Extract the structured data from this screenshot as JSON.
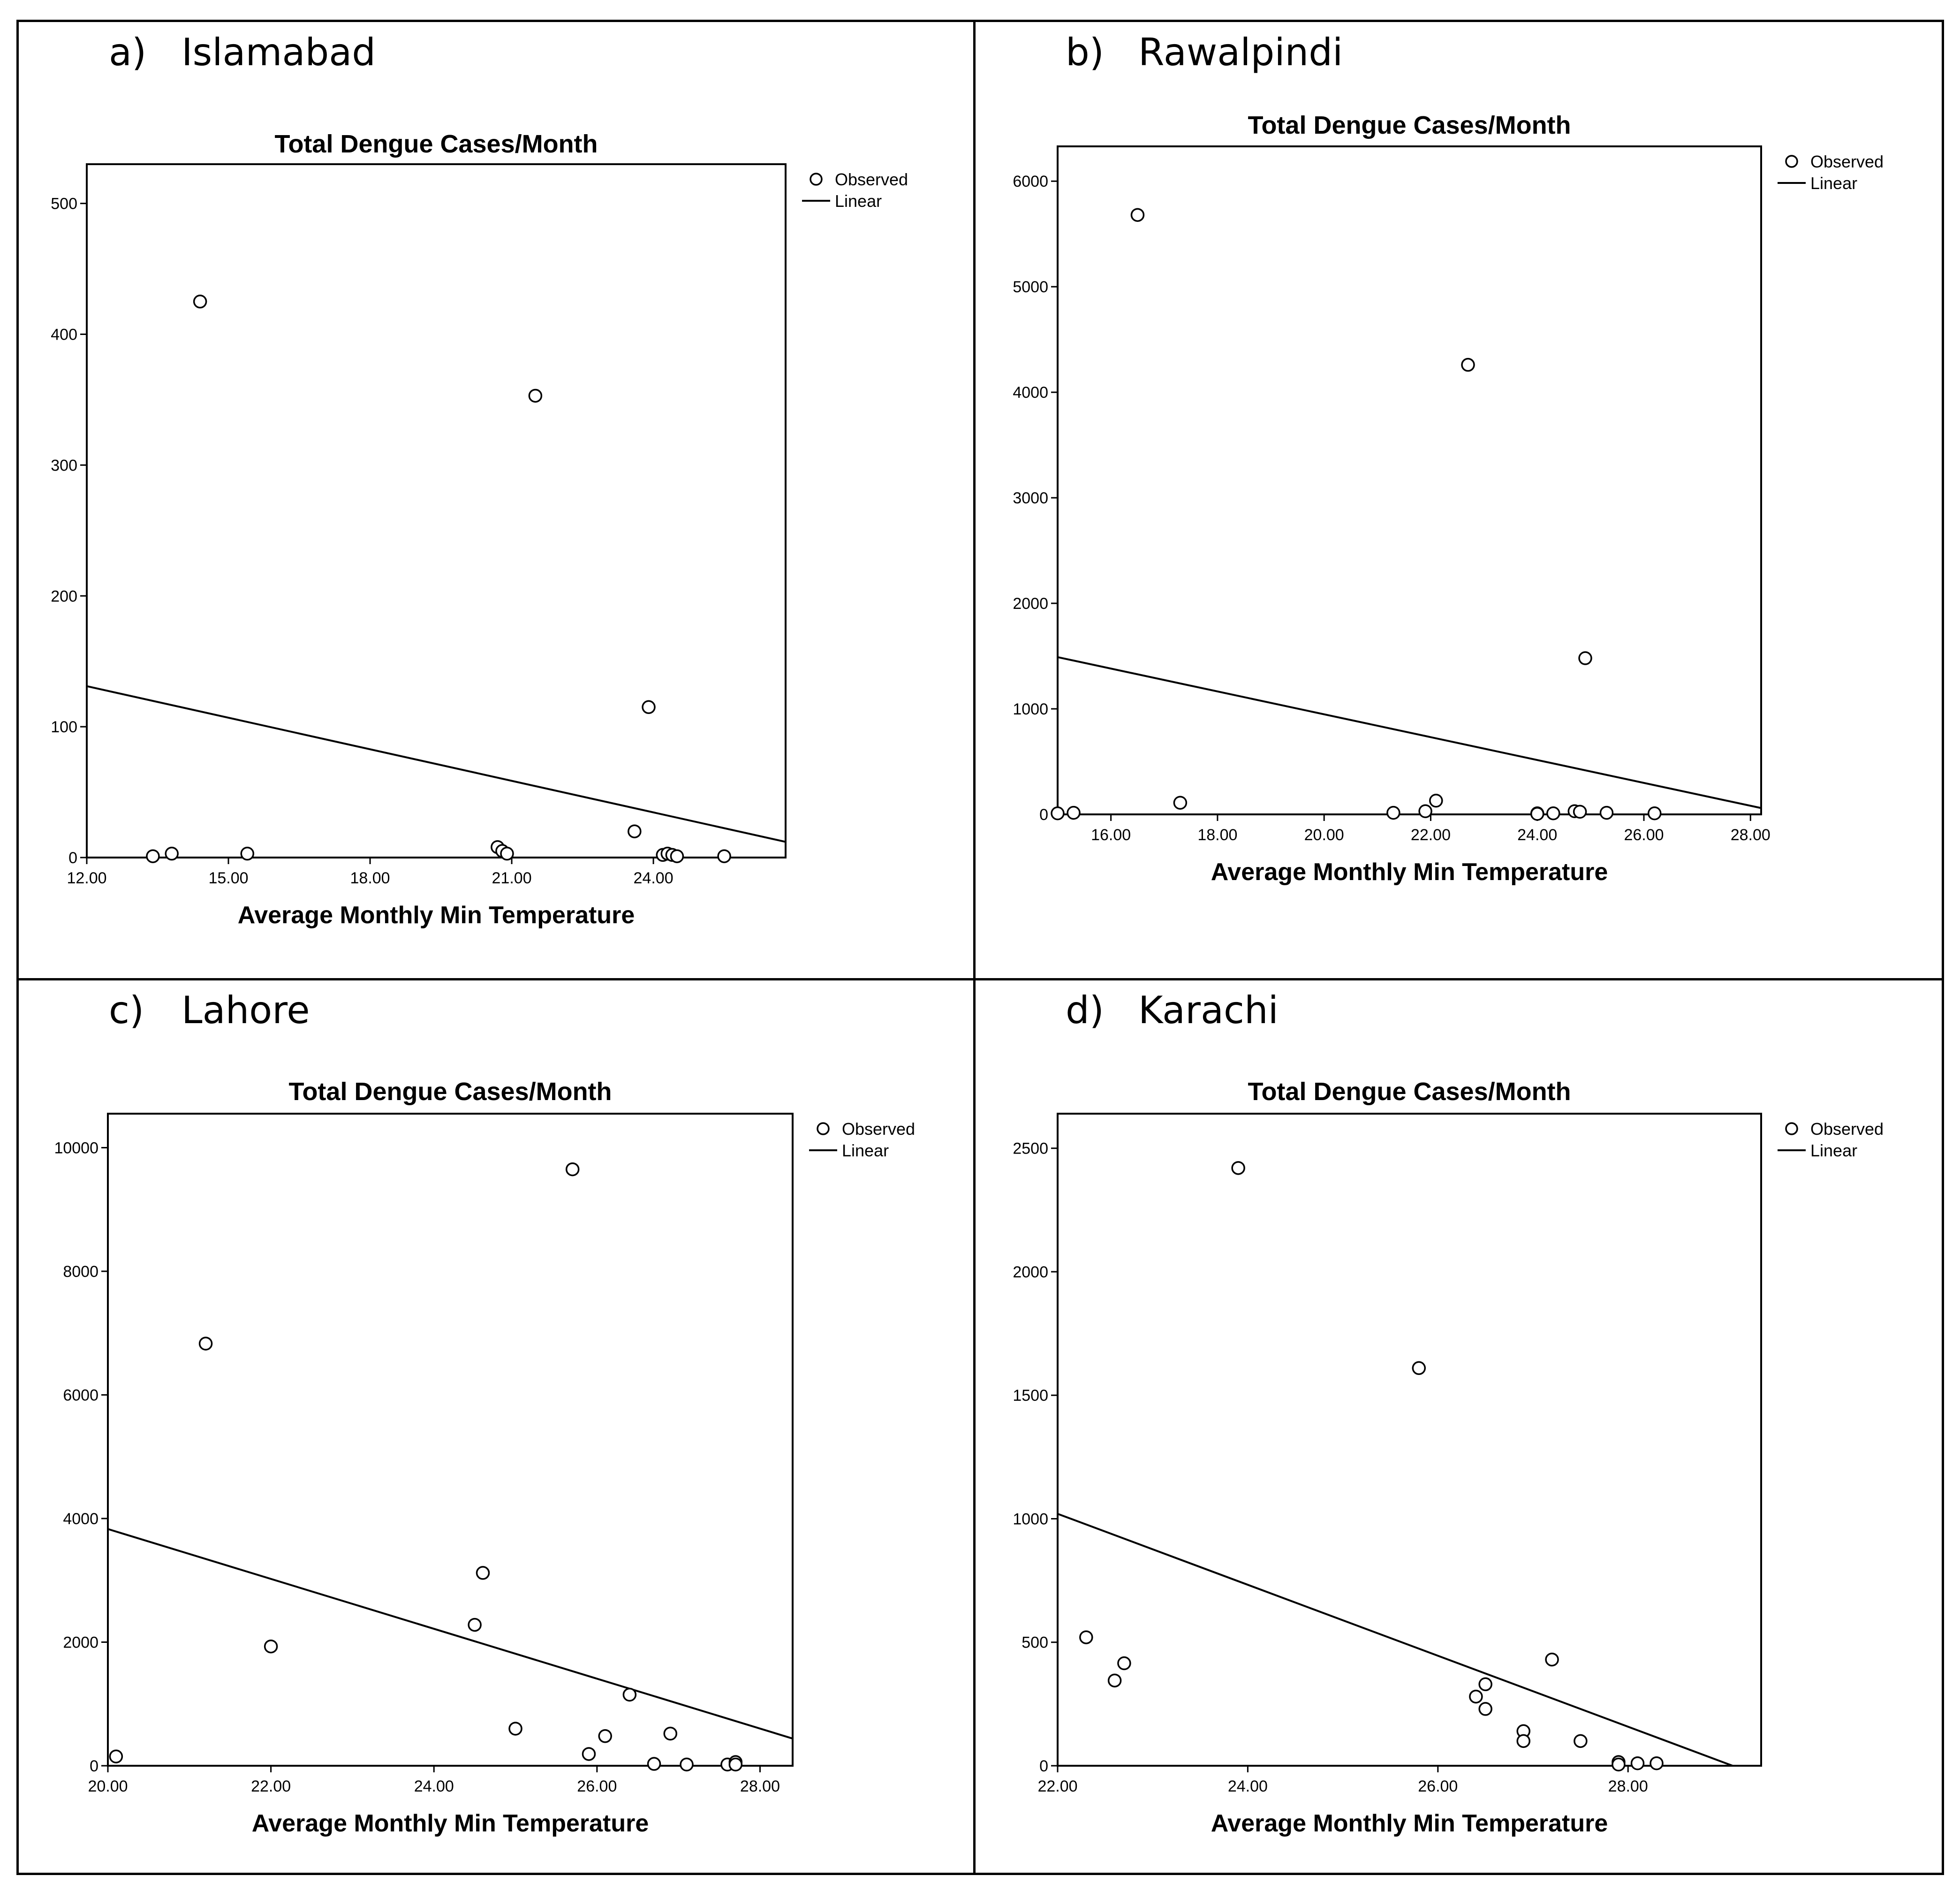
{
  "figure": {
    "panels": [
      {
        "letter": "a)",
        "city": "Islamabad"
      },
      {
        "letter": "b)",
        "city": "Rawalpindi"
      },
      {
        "letter": "c)",
        "city": "Lahore"
      },
      {
        "letter": "d)",
        "city": "Karachi"
      }
    ]
  },
  "chart_data": [
    {
      "type": "scatter",
      "panel": "a) Islamabad",
      "title": "Total Dengue Cases/Month",
      "xlabel": "Average Monthly Min Temperature",
      "ylabel": "",
      "xlim": [
        12,
        26.8
      ],
      "ylim": [
        0,
        530
      ],
      "xticks": [
        12,
        15,
        18,
        21,
        24
      ],
      "xtick_labels": [
        "12.00",
        "15.00",
        "18.00",
        "21.00",
        "24.00"
      ],
      "yticks": [
        0,
        100,
        200,
        300,
        400,
        500
      ],
      "ytick_labels": [
        "0",
        "100",
        "200",
        "300",
        "400",
        "500"
      ],
      "legend": [
        "Observed",
        "Linear"
      ],
      "legend_position": "outside-top-right",
      "points": [
        [
          13.4,
          1
        ],
        [
          13.8,
          3
        ],
        [
          14.4,
          425
        ],
        [
          15.4,
          3
        ],
        [
          20.7,
          8
        ],
        [
          20.8,
          5
        ],
        [
          20.9,
          3
        ],
        [
          21.5,
          353
        ],
        [
          23.6,
          20
        ],
        [
          23.9,
          115
        ],
        [
          24.2,
          2
        ],
        [
          24.3,
          3
        ],
        [
          24.4,
          2
        ],
        [
          24.5,
          1
        ],
        [
          25.5,
          1
        ]
      ],
      "linear_fit": {
        "x": [
          12,
          26.8
        ],
        "y": [
          131,
          12
        ]
      }
    },
    {
      "type": "scatter",
      "panel": "b) Rawalpindi",
      "title": "Total Dengue Cases/Month",
      "xlabel": "Average Monthly Min Temperature",
      "ylabel": "",
      "xlim": [
        15,
        28.2
      ],
      "ylim": [
        0,
        6330
      ],
      "xticks": [
        16,
        18,
        20,
        22,
        24,
        26,
        28
      ],
      "xtick_labels": [
        "16.00",
        "18.00",
        "20.00",
        "22.00",
        "24.00",
        "26.00",
        "28.00"
      ],
      "yticks": [
        0,
        1000,
        2000,
        3000,
        4000,
        5000,
        6000
      ],
      "ytick_labels": [
        "0",
        "1000",
        "2000",
        "3000",
        "4000",
        "5000",
        "6000"
      ],
      "legend": [
        "Observed",
        "Linear"
      ],
      "legend_position": "outside-top-right",
      "points": [
        [
          15.0,
          10
        ],
        [
          15.3,
          15
        ],
        [
          16.5,
          5680
        ],
        [
          17.3,
          110
        ],
        [
          21.3,
          15
        ],
        [
          21.9,
          30
        ],
        [
          22.1,
          130
        ],
        [
          22.7,
          4260
        ],
        [
          24.0,
          10
        ],
        [
          24.0,
          5
        ],
        [
          24.3,
          10
        ],
        [
          24.7,
          30
        ],
        [
          24.8,
          25
        ],
        [
          24.9,
          1480
        ],
        [
          25.3,
          15
        ],
        [
          26.2,
          10
        ]
      ],
      "linear_fit": {
        "x": [
          15,
          28.2
        ],
        "y": [
          1490,
          60
        ]
      }
    },
    {
      "type": "scatter",
      "panel": "c) Lahore",
      "title": "Total Dengue Cases/Month",
      "xlabel": "Average Monthly Min Temperature",
      "ylabel": "",
      "xlim": [
        20,
        28.4
      ],
      "ylim": [
        0,
        10550
      ],
      "xticks": [
        20,
        22,
        24,
        26,
        28
      ],
      "xtick_labels": [
        "20.00",
        "22.00",
        "24.00",
        "26.00",
        "28.00"
      ],
      "yticks": [
        0,
        2000,
        4000,
        6000,
        8000,
        10000
      ],
      "ytick_labels": [
        "0",
        "2000",
        "4000",
        "6000",
        "8000",
        "10000"
      ],
      "legend": [
        "Observed",
        "Linear"
      ],
      "legend_position": "outside-top-right",
      "points": [
        [
          20.1,
          150
        ],
        [
          21.2,
          6830
        ],
        [
          22.0,
          1930
        ],
        [
          24.5,
          2280
        ],
        [
          24.6,
          3120
        ],
        [
          25.0,
          600
        ],
        [
          25.7,
          9650
        ],
        [
          25.9,
          190
        ],
        [
          26.1,
          480
        ],
        [
          26.4,
          1150
        ],
        [
          26.7,
          30
        ],
        [
          26.9,
          520
        ],
        [
          27.1,
          20
        ],
        [
          27.6,
          20
        ],
        [
          27.7,
          60
        ],
        [
          27.7,
          20
        ]
      ],
      "linear_fit": {
        "x": [
          20,
          28.4
        ],
        "y": [
          3830,
          440
        ]
      }
    },
    {
      "type": "scatter",
      "panel": "d) Karachi",
      "title": "Total Dengue Cases/Month",
      "xlabel": "Average Monthly Min Temperature",
      "ylabel": "",
      "xlim": [
        22,
        29.4
      ],
      "ylim": [
        0,
        2640
      ],
      "xticks": [
        22,
        24,
        26,
        28
      ],
      "xtick_labels": [
        "22.00",
        "24.00",
        "26.00",
        "28.00"
      ],
      "yticks": [
        0,
        500,
        1000,
        1500,
        2000,
        2500
      ],
      "ytick_labels": [
        "0",
        "500",
        "1000",
        "1500",
        "2000",
        "2500"
      ],
      "legend": [
        "Observed",
        "Linear"
      ],
      "legend_position": "outside-top-right",
      "points": [
        [
          22.3,
          520
        ],
        [
          22.6,
          345
        ],
        [
          22.7,
          415
        ],
        [
          23.9,
          2420
        ],
        [
          25.8,
          1610
        ],
        [
          26.4,
          280
        ],
        [
          26.5,
          330
        ],
        [
          26.5,
          230
        ],
        [
          26.9,
          140
        ],
        [
          26.9,
          100
        ],
        [
          27.2,
          430
        ],
        [
          27.5,
          100
        ],
        [
          27.9,
          15
        ],
        [
          27.9,
          5
        ],
        [
          28.1,
          10
        ],
        [
          28.3,
          10
        ]
      ],
      "linear_fit": {
        "x": [
          22,
          29.1
        ],
        "y": [
          1020,
          0
        ]
      }
    }
  ]
}
